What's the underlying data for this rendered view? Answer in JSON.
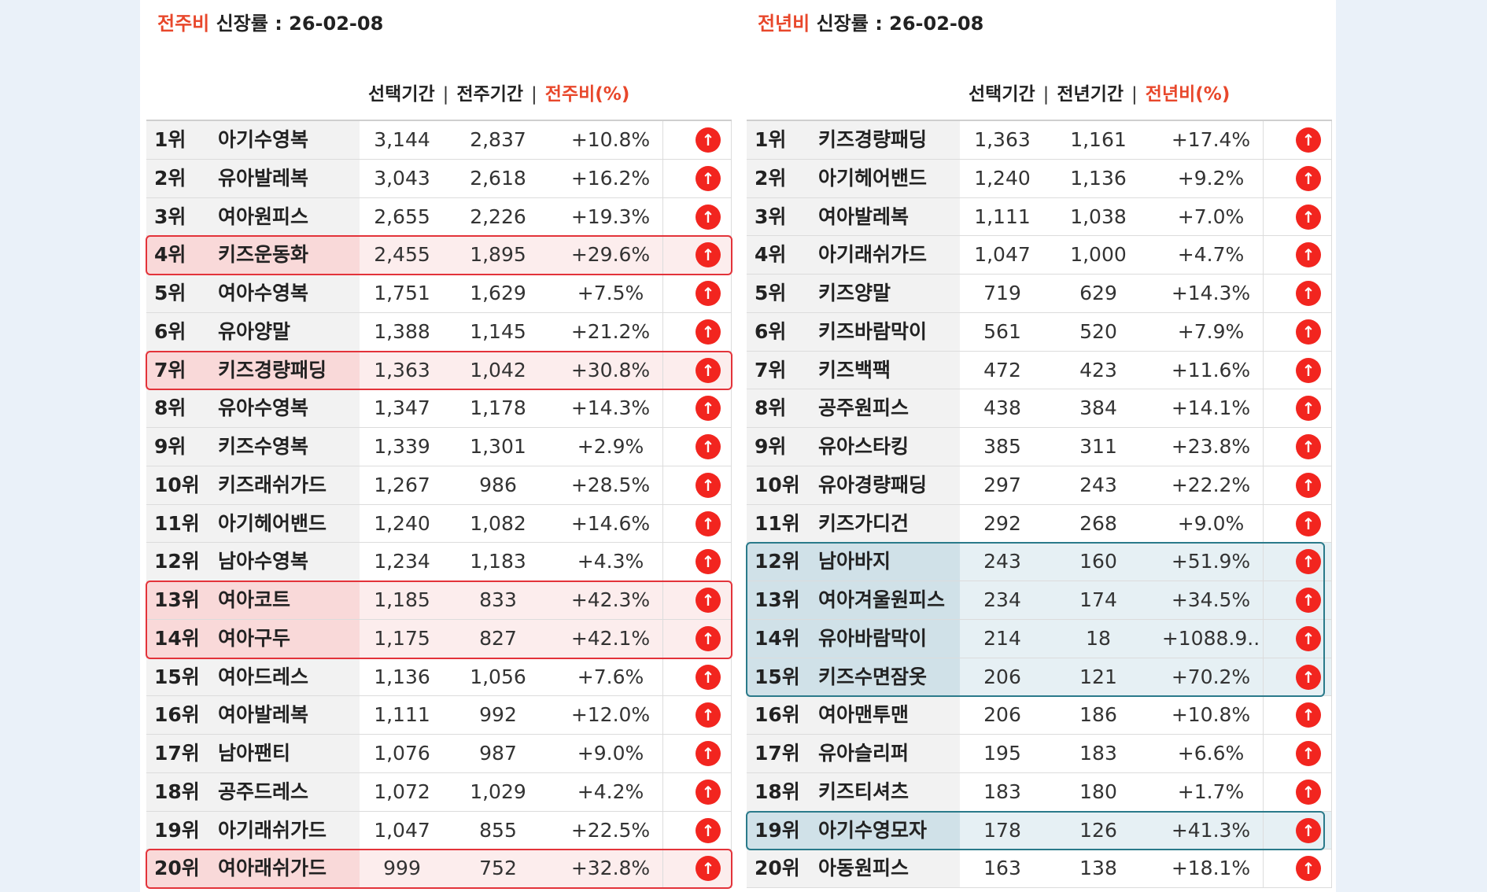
{
  "left": {
    "title_accent": "전주비",
    "title_rest": " 신장률  : 26-02-08",
    "headers": [
      "선택기간",
      "전주기간",
      "전주비(%)"
    ],
    "header_sep": "|",
    "icon": "arrow-up-circle-icon",
    "rows": [
      {
        "rank": "1위",
        "name": "아기수영복",
        "cur": "3,144",
        "prev": "2,837",
        "pct": "+10.8%",
        "highlight": false
      },
      {
        "rank": "2위",
        "name": "유아발레복",
        "cur": "3,043",
        "prev": "2,618",
        "pct": "+16.2%",
        "highlight": false
      },
      {
        "rank": "3위",
        "name": "여아원피스",
        "cur": "2,655",
        "prev": "2,226",
        "pct": "+19.3%",
        "highlight": false
      },
      {
        "rank": "4위",
        "name": "키즈운동화",
        "cur": "2,455",
        "prev": "1,895",
        "pct": "+29.6%",
        "highlight": true
      },
      {
        "rank": "5위",
        "name": "여아수영복",
        "cur": "1,751",
        "prev": "1,629",
        "pct": "+7.5%",
        "highlight": false
      },
      {
        "rank": "6위",
        "name": "유아양말",
        "cur": "1,388",
        "prev": "1,145",
        "pct": "+21.2%",
        "highlight": false
      },
      {
        "rank": "7위",
        "name": "키즈경량패딩",
        "cur": "1,363",
        "prev": "1,042",
        "pct": "+30.8%",
        "highlight": true
      },
      {
        "rank": "8위",
        "name": "유아수영복",
        "cur": "1,347",
        "prev": "1,178",
        "pct": "+14.3%",
        "highlight": false
      },
      {
        "rank": "9위",
        "name": "키즈수영복",
        "cur": "1,339",
        "prev": "1,301",
        "pct": "+2.9%",
        "highlight": false
      },
      {
        "rank": "10위",
        "name": "키즈래쉬가드",
        "cur": "1,267",
        "prev": "986",
        "pct": "+28.5%",
        "highlight": false
      },
      {
        "rank": "11위",
        "name": "아기헤어밴드",
        "cur": "1,240",
        "prev": "1,082",
        "pct": "+14.6%",
        "highlight": false
      },
      {
        "rank": "12위",
        "name": "남아수영복",
        "cur": "1,234",
        "prev": "1,183",
        "pct": "+4.3%",
        "highlight": false
      },
      {
        "rank": "13위",
        "name": "여아코트",
        "cur": "1,185",
        "prev": "833",
        "pct": "+42.3%",
        "highlight": true
      },
      {
        "rank": "14위",
        "name": "여아구두",
        "cur": "1,175",
        "prev": "827",
        "pct": "+42.1%",
        "highlight": true
      },
      {
        "rank": "15위",
        "name": "여아드레스",
        "cur": "1,136",
        "prev": "1,056",
        "pct": "+7.6%",
        "highlight": false
      },
      {
        "rank": "16위",
        "name": "여아발레복",
        "cur": "1,111",
        "prev": "992",
        "pct": "+12.0%",
        "highlight": false
      },
      {
        "rank": "17위",
        "name": "남아팬티",
        "cur": "1,076",
        "prev": "987",
        "pct": "+9.0%",
        "highlight": false
      },
      {
        "rank": "18위",
        "name": "공주드레스",
        "cur": "1,072",
        "prev": "1,029",
        "pct": "+4.2%",
        "highlight": false
      },
      {
        "rank": "19위",
        "name": "아기래쉬가드",
        "cur": "1,047",
        "prev": "855",
        "pct": "+22.5%",
        "highlight": false
      },
      {
        "rank": "20위",
        "name": "여아래쉬가드",
        "cur": "999",
        "prev": "752",
        "pct": "+32.8%",
        "highlight": true
      }
    ]
  },
  "right": {
    "title_accent": "전년비",
    "title_rest": " 신장률 : 26-02-08",
    "headers": [
      "선택기간",
      "전년기간",
      "전년비(%)"
    ],
    "header_sep": "|",
    "icon": "arrow-up-circle-icon",
    "rows": [
      {
        "rank": "1위",
        "name": "키즈경량패딩",
        "cur": "1,363",
        "prev": "1,161",
        "pct": "+17.4%",
        "highlight": false
      },
      {
        "rank": "2위",
        "name": "아기헤어밴드",
        "cur": "1,240",
        "prev": "1,136",
        "pct": "+9.2%",
        "highlight": false
      },
      {
        "rank": "3위",
        "name": "여아발레복",
        "cur": "1,111",
        "prev": "1,038",
        "pct": "+7.0%",
        "highlight": false
      },
      {
        "rank": "4위",
        "name": "아기래쉬가드",
        "cur": "1,047",
        "prev": "1,000",
        "pct": "+4.7%",
        "highlight": false
      },
      {
        "rank": "5위",
        "name": "키즈양말",
        "cur": "719",
        "prev": "629",
        "pct": "+14.3%",
        "highlight": false
      },
      {
        "rank": "6위",
        "name": "키즈바람막이",
        "cur": "561",
        "prev": "520",
        "pct": "+7.9%",
        "highlight": false
      },
      {
        "rank": "7위",
        "name": "키즈백팩",
        "cur": "472",
        "prev": "423",
        "pct": "+11.6%",
        "highlight": false
      },
      {
        "rank": "8위",
        "name": "공주원피스",
        "cur": "438",
        "prev": "384",
        "pct": "+14.1%",
        "highlight": false
      },
      {
        "rank": "9위",
        "name": "유아스타킹",
        "cur": "385",
        "prev": "311",
        "pct": "+23.8%",
        "highlight": false
      },
      {
        "rank": "10위",
        "name": "유아경량패딩",
        "cur": "297",
        "prev": "243",
        "pct": "+22.2%",
        "highlight": false
      },
      {
        "rank": "11위",
        "name": "키즈가디건",
        "cur": "292",
        "prev": "268",
        "pct": "+9.0%",
        "highlight": false
      },
      {
        "rank": "12위",
        "name": "남아바지",
        "cur": "243",
        "prev": "160",
        "pct": "+51.9%",
        "highlight": true
      },
      {
        "rank": "13위",
        "name": "여아겨울원피스",
        "cur": "234",
        "prev": "174",
        "pct": "+34.5%",
        "highlight": true
      },
      {
        "rank": "14위",
        "name": "유아바람막이",
        "cur": "214",
        "prev": "18",
        "pct": "+1088.9..",
        "highlight": true
      },
      {
        "rank": "15위",
        "name": "키즈수면잠옷",
        "cur": "206",
        "prev": "121",
        "pct": "+70.2%",
        "highlight": true
      },
      {
        "rank": "16위",
        "name": "여아맨투맨",
        "cur": "206",
        "prev": "186",
        "pct": "+10.8%",
        "highlight": false
      },
      {
        "rank": "17위",
        "name": "유아슬리퍼",
        "cur": "195",
        "prev": "183",
        "pct": "+6.6%",
        "highlight": false
      },
      {
        "rank": "18위",
        "name": "키즈티셔츠",
        "cur": "183",
        "prev": "180",
        "pct": "+1.7%",
        "highlight": false
      },
      {
        "rank": "19위",
        "name": "아기수영모자",
        "cur": "178",
        "prev": "126",
        "pct": "+41.3%",
        "highlight": true
      },
      {
        "rank": "20위",
        "name": "아동원피스",
        "cur": "163",
        "prev": "138",
        "pct": "+18.1%",
        "highlight": false
      }
    ]
  },
  "colors": {
    "accent": "#e8472b",
    "up_icon": "#f2251f",
    "highlight_red_border": "#e3333a",
    "highlight_blue_border": "#2a7a8a"
  }
}
